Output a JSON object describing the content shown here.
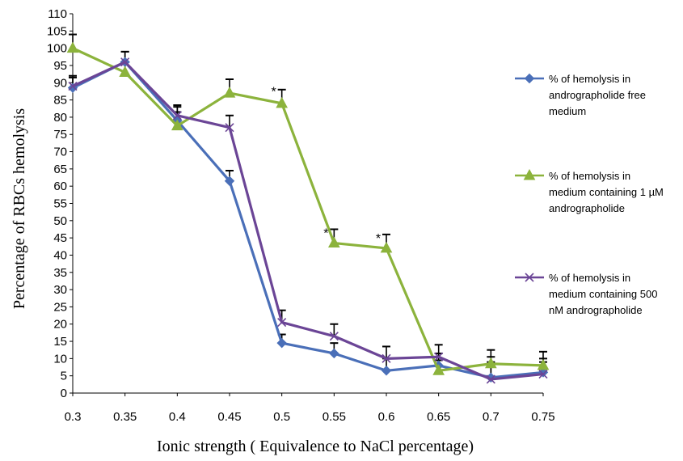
{
  "chart_data": {
    "type": "line",
    "title": "",
    "xlabel": "Ionic strength ( Equivalence to NaCl  percentage)",
    "ylabel": "Percentage of  RBCs  hemolysis",
    "categories": [
      "0.3",
      "0.35",
      "0.4",
      "0.45",
      "0.5",
      "0.55",
      "0.6",
      "0.65",
      "0.7",
      "0.75"
    ],
    "ylim": [
      0,
      110
    ],
    "yticks": [
      0,
      5,
      10,
      15,
      20,
      25,
      30,
      35,
      40,
      45,
      50,
      55,
      60,
      65,
      70,
      75,
      80,
      85,
      90,
      95,
      100,
      105,
      110
    ],
    "grid": false,
    "legend_position": "right",
    "series": [
      {
        "name": "% of hemolysis in andrographolide free medium",
        "legend_lines": [
          "% of hemolysis in",
          "andrographolide free",
          "medium"
        ],
        "color": "#4a6fb8",
        "marker": "diamond",
        "values": [
          88.5,
          96,
          79,
          61.5,
          14.5,
          11.5,
          6.5,
          8,
          4.5,
          6
        ],
        "errors": [
          3,
          3,
          4,
          3,
          2.5,
          3,
          3.5,
          3.5,
          6,
          4
        ]
      },
      {
        "name": "% of hemolysis in medium containing 1 µM andrographolide",
        "legend_lines": [
          "% of hemolysis in",
          "medium containing 1 µM",
          "andrographolide"
        ],
        "color": "#8cb33c",
        "marker": "triangle",
        "values": [
          100,
          93,
          77.5,
          87,
          84,
          43.5,
          42,
          6.5,
          8.5,
          8
        ],
        "errors": [
          4,
          3,
          4,
          4,
          4,
          4,
          4,
          3,
          4,
          4
        ]
      },
      {
        "name": "% of hemolysis in medium containing 500 nM andrographolide",
        "legend_lines": [
          "% of hemolysis in",
          "medium containing 500",
          "nM andrographolide"
        ],
        "color": "#6b4596",
        "marker": "x",
        "values": [
          89,
          96,
          80.5,
          77,
          20.5,
          16.5,
          10,
          10.5,
          4,
          5.5
        ],
        "errors": [
          3,
          3,
          3,
          3.5,
          3.5,
          3.5,
          3.5,
          3.5,
          5,
          3.5
        ]
      }
    ],
    "annotations": [
      {
        "text": "*",
        "category": "0.5",
        "y": 88.5
      },
      {
        "text": "*",
        "category": "0.55",
        "y": 47.5
      },
      {
        "text": "*",
        "category": "0.6",
        "y": 46
      }
    ]
  }
}
